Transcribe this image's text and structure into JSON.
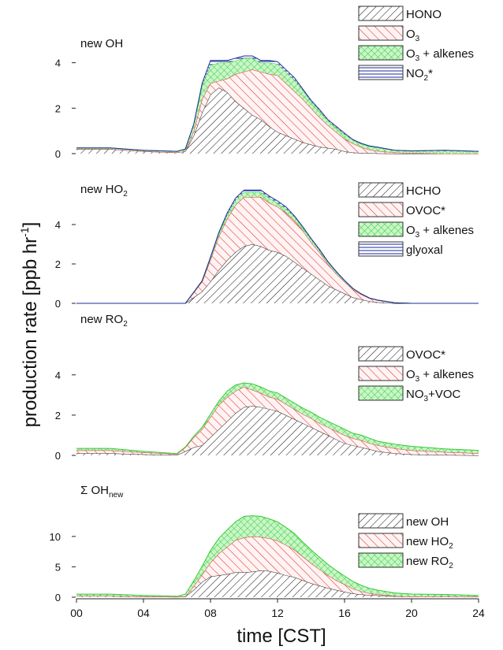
{
  "figure": {
    "ylabel": "production rate [ppb hr",
    "ylabel_sup": "-1",
    "ylabel_close": "]",
    "xlabel": "time [CST]",
    "xticks": [
      "00",
      "04",
      "08",
      "12",
      "16",
      "20",
      "24"
    ]
  },
  "colors": {
    "black": "#222222",
    "red": "#e0312c",
    "green": "#35d335",
    "blue": "#1a2b9c",
    "red_fill": "#fbe3e3",
    "green_fill": "#c7f7c7"
  },
  "chart_data": [
    {
      "type": "area",
      "title": "new OH",
      "ylim": [
        0,
        5.2
      ],
      "yticks": [
        0,
        2,
        4
      ],
      "x_unit": "hour (CST)",
      "x": [
        0,
        2,
        4,
        6,
        6.5,
        7,
        7.5,
        8,
        8.5,
        9,
        9.5,
        10,
        10.5,
        11,
        11.5,
        12,
        12.5,
        13,
        13.5,
        14,
        14.5,
        15,
        15.5,
        16,
        16.5,
        17,
        17.5,
        18,
        19,
        20,
        22,
        24
      ],
      "stacked": true,
      "series": [
        {
          "name": "HONO",
          "pattern": "hatch-black",
          "values": [
            0.2,
            0.2,
            0.1,
            0.05,
            0.1,
            0.8,
            1.8,
            2.6,
            2.9,
            2.7,
            2.3,
            2.0,
            1.7,
            1.5,
            1.2,
            0.95,
            0.8,
            0.65,
            0.5,
            0.4,
            0.3,
            0.25,
            0.2,
            0.1,
            0.05,
            0.03,
            0.02,
            0.01,
            0,
            0,
            0,
            0
          ]
        },
        {
          "name": "O3",
          "pattern": "hatch-red",
          "values": [
            0,
            0,
            0,
            0,
            0,
            0.2,
            0.6,
            0.5,
            0.3,
            0.6,
            1.2,
            1.6,
            2.0,
            2.1,
            2.3,
            2.5,
            2.3,
            2.1,
            1.9,
            1.6,
            1.3,
            1.0,
            0.75,
            0.55,
            0.4,
            0.25,
            0.15,
            0.1,
            0.05,
            0.02,
            0,
            0
          ]
        },
        {
          "name": "O3 + alkenes",
          "pattern": "cross-green",
          "values": [
            0.05,
            0.05,
            0.05,
            0.05,
            0.1,
            0.3,
            0.6,
            0.8,
            0.8,
            0.7,
            0.6,
            0.6,
            0.5,
            0.4,
            0.5,
            0.5,
            0.5,
            0.5,
            0.4,
            0.3,
            0.3,
            0.2,
            0.2,
            0.2,
            0.15,
            0.15,
            0.15,
            0.15,
            0.1,
            0.1,
            0.15,
            0.1
          ]
        },
        {
          "name": "NO2*",
          "pattern": "lines-blue",
          "values": [
            0,
            0,
            0,
            0,
            0,
            0,
            0.1,
            0.2,
            0.1,
            0.1,
            0.1,
            0.1,
            0.1,
            0.1,
            0.1,
            0.1,
            0.1,
            0.1,
            0.05,
            0.05,
            0.05,
            0.05,
            0.05,
            0.05,
            0.02,
            0.02,
            0.02,
            0.02,
            0,
            0,
            0,
            0
          ]
        }
      ],
      "legend": [
        {
          "text": "HONO",
          "sub": "",
          "post": ""
        },
        {
          "text": "O",
          "sub": "3",
          "post": ""
        },
        {
          "text": "O",
          "sub": "3",
          "post": " + alkenes"
        },
        {
          "text": "NO",
          "sub": "2",
          "post": "*"
        }
      ]
    },
    {
      "type": "area",
      "title": "new HO",
      "title_sub": "2",
      "ylim": [
        0,
        6.2
      ],
      "yticks": [
        0,
        2,
        4
      ],
      "x_unit": "hour (CST)",
      "x": [
        0,
        2,
        4,
        6,
        6.5,
        7,
        7.5,
        8,
        8.5,
        9,
        9.5,
        10,
        10.5,
        11,
        11.5,
        12,
        12.5,
        13,
        13.5,
        14,
        14.5,
        15,
        15.5,
        16,
        16.5,
        17,
        17.5,
        18,
        19,
        20,
        22,
        24
      ],
      "stacked": true,
      "series": [
        {
          "name": "HCHO",
          "pattern": "hatch-black",
          "values": [
            0,
            0,
            0,
            0,
            0,
            0.3,
            0.6,
            1.1,
            1.7,
            2.2,
            2.6,
            2.9,
            3.0,
            2.9,
            2.7,
            2.6,
            2.4,
            2.1,
            1.8,
            1.5,
            1.2,
            0.9,
            0.7,
            0.5,
            0.3,
            0.2,
            0.1,
            0.05,
            0,
            0,
            0,
            0
          ]
        },
        {
          "name": "OVOC*",
          "pattern": "hatch-red",
          "values": [
            0,
            0,
            0,
            0,
            0,
            0.25,
            0.5,
            1.1,
            1.7,
            2.1,
            2.4,
            2.5,
            2.4,
            2.5,
            2.4,
            2.3,
            2.2,
            2.1,
            1.9,
            1.6,
            1.4,
            1.1,
            0.8,
            0.6,
            0.4,
            0.25,
            0.15,
            0.1,
            0.03,
            0,
            0,
            0
          ]
        },
        {
          "name": "O3 + alkenes",
          "pattern": "cross-green",
          "values": [
            0,
            0,
            0,
            0,
            0,
            0.02,
            0.05,
            0.1,
            0.15,
            0.2,
            0.25,
            0.25,
            0.25,
            0.25,
            0.25,
            0.2,
            0.2,
            0.2,
            0.15,
            0.15,
            0.1,
            0.1,
            0.1,
            0.05,
            0.05,
            0.03,
            0.02,
            0.01,
            0,
            0,
            0,
            0
          ]
        },
        {
          "name": "glyoxal",
          "pattern": "lines-blue",
          "values": [
            0,
            0,
            0,
            0,
            0,
            0,
            0,
            0.05,
            0.05,
            0.1,
            0.1,
            0.1,
            0.1,
            0.1,
            0.1,
            0.1,
            0.1,
            0.05,
            0.05,
            0.05,
            0.05,
            0.03,
            0.02,
            0.02,
            0.01,
            0,
            0,
            0,
            0,
            0,
            0,
            0
          ]
        }
      ],
      "legend": [
        {
          "text": "HCHO",
          "sub": "",
          "post": ""
        },
        {
          "text": "OVOC*",
          "sub": "",
          "post": ""
        },
        {
          "text": "O",
          "sub": "3",
          "post": " + alkenes"
        },
        {
          "text": "glyoxal",
          "sub": "",
          "post": ""
        }
      ]
    },
    {
      "type": "area",
      "title": "new RO",
      "title_sub": "2",
      "ylim": [
        0,
        5.4
      ],
      "yticks": [
        0,
        2,
        4
      ],
      "x_unit": "hour (CST)",
      "x": [
        0,
        2,
        4,
        6,
        6.5,
        7,
        7.5,
        8,
        8.5,
        9,
        9.5,
        10,
        10.5,
        11,
        11.5,
        12,
        12.5,
        13,
        13.5,
        14,
        14.5,
        15,
        15.5,
        16,
        16.5,
        17,
        17.5,
        18,
        19,
        20,
        22,
        24
      ],
      "stacked": true,
      "series": [
        {
          "name": "OVOC*",
          "pattern": "hatch-black",
          "values": [
            0.1,
            0.1,
            0.05,
            0.02,
            0.2,
            0.4,
            0.5,
            0.9,
            1.3,
            1.7,
            2.1,
            2.4,
            2.45,
            2.4,
            2.3,
            2.2,
            2.0,
            1.8,
            1.6,
            1.4,
            1.2,
            1.0,
            0.8,
            0.6,
            0.5,
            0.4,
            0.3,
            0.2,
            0.1,
            0.05,
            0.02,
            0
          ]
        },
        {
          "name": "O3 + alkenes",
          "pattern": "hatch-red",
          "values": [
            0.15,
            0.15,
            0.1,
            0.05,
            0.2,
            0.5,
            0.8,
            1.0,
            1.2,
            1.2,
            1.1,
            1.0,
            0.8,
            0.7,
            0.6,
            0.6,
            0.55,
            0.5,
            0.45,
            0.45,
            0.4,
            0.4,
            0.4,
            0.4,
            0.35,
            0.35,
            0.3,
            0.3,
            0.25,
            0.2,
            0.15,
            0.1
          ]
        },
        {
          "name": "NO3+VOC",
          "pattern": "cross-green",
          "values": [
            0.1,
            0.1,
            0.05,
            0.02,
            0.02,
            0.05,
            0.1,
            0.15,
            0.2,
            0.3,
            0.3,
            0.2,
            0.3,
            0.3,
            0.3,
            0.3,
            0.3,
            0.3,
            0.3,
            0.3,
            0.3,
            0.3,
            0.3,
            0.3,
            0.25,
            0.25,
            0.25,
            0.2,
            0.2,
            0.2,
            0.15,
            0.15
          ]
        }
      ],
      "legend": [
        {
          "text": "OVOC*",
          "sub": "",
          "post": ""
        },
        {
          "text": "O",
          "sub": "3",
          "post": " + alkenes"
        },
        {
          "text": "NO",
          "sub": "3",
          "post": "+VOC"
        }
      ]
    },
    {
      "type": "area",
      "title": "Σ OH",
      "title_sub": "new",
      "ylim": [
        0,
        14
      ],
      "yticks": [
        0,
        5,
        10
      ],
      "x_unit": "hour (CST)",
      "x": [
        0,
        2,
        4,
        6,
        6.5,
        7,
        7.5,
        8,
        8.5,
        9,
        9.5,
        10,
        10.5,
        11,
        11.5,
        12,
        12.5,
        13,
        13.5,
        14,
        14.5,
        15,
        15.5,
        16,
        16.5,
        17,
        17.5,
        18,
        19,
        20,
        22,
        24
      ],
      "stacked": true,
      "series": [
        {
          "name": "new OH",
          "pattern": "hatch-black",
          "values": [
            0.2,
            0.2,
            0.1,
            0.05,
            0.1,
            1.2,
            2.5,
            3.4,
            3.6,
            3.8,
            4.1,
            4.1,
            4.2,
            4.4,
            4.3,
            4.0,
            3.6,
            3.3,
            2.8,
            2.3,
            1.9,
            1.5,
            1.2,
            0.9,
            0.6,
            0.45,
            0.35,
            0.3,
            0.15,
            0.12,
            0.15,
            0.1
          ]
        },
        {
          "name": "new HO2",
          "pattern": "hatch-red",
          "values": [
            0,
            0,
            0,
            0,
            0,
            0.6,
            1.2,
            2.3,
            3.6,
            4.5,
            5.3,
            5.7,
            5.8,
            5.5,
            5.4,
            5.3,
            5.0,
            4.5,
            3.9,
            3.3,
            2.7,
            2.1,
            1.6,
            1.2,
            0.8,
            0.5,
            0.3,
            0.15,
            0.05,
            0,
            0,
            0
          ]
        },
        {
          "name": "new RO2",
          "pattern": "cross-green",
          "values": [
            0.3,
            0.3,
            0.2,
            0.1,
            0.4,
            0.9,
            1.4,
            2.0,
            2.5,
            2.8,
            3.0,
            3.5,
            3.4,
            3.4,
            3.2,
            3.1,
            2.9,
            2.7,
            2.4,
            2.2,
            2.0,
            1.8,
            1.6,
            1.4,
            1.2,
            1.0,
            0.8,
            0.7,
            0.5,
            0.4,
            0.3,
            0.2
          ]
        }
      ],
      "legend": [
        {
          "text": "new OH",
          "sub": "",
          "post": ""
        },
        {
          "text": "new HO",
          "sub": "2",
          "post": ""
        },
        {
          "text": "new RO",
          "sub": "2",
          "post": ""
        }
      ]
    }
  ]
}
